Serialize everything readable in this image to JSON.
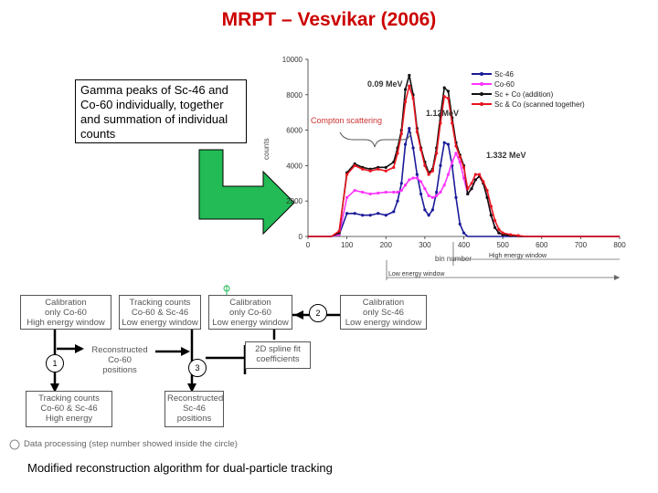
{
  "slide": {
    "title": "MRPT – Vesvikar (2006)",
    "callout": "Gamma peaks of Sc-46 and Co-60 individually, together and summation of individual counts",
    "caption": "Modified reconstruction algorithm for dual-particle tracking"
  },
  "colors": {
    "title": "#cc0000",
    "arrow_green": "#22bb55",
    "sc46": "#1a1a99",
    "co60": "#ff33ff",
    "addition": "#111111",
    "scanned": "#e8141e",
    "compton": "#cc3333"
  },
  "chart_data": {
    "type": "line",
    "ylabel": "counts",
    "xlabel": "bin number",
    "xlim": [
      0,
      800
    ],
    "ylim": [
      0,
      10000
    ],
    "xticks": [
      0,
      100,
      200,
      300,
      400,
      500,
      600,
      700,
      800
    ],
    "yticks": [
      0,
      2000,
      4000,
      6000,
      8000,
      10000
    ],
    "grid": false,
    "legend_position": "top-right",
    "x": [
      0,
      40,
      60,
      80,
      100,
      120,
      140,
      160,
      180,
      200,
      220,
      230,
      240,
      250,
      260,
      270,
      280,
      290,
      300,
      310,
      320,
      330,
      340,
      350,
      360,
      370,
      380,
      390,
      400,
      410,
      420,
      430,
      440,
      450,
      460,
      470,
      480,
      490,
      500,
      520,
      540,
      560,
      600,
      700,
      800
    ],
    "series": [
      {
        "name": "Sc-46",
        "values": [
          0,
          0,
          0,
          100,
          1300,
          1300,
          1200,
          1200,
          1300,
          1200,
          1400,
          2000,
          3000,
          5200,
          6100,
          5000,
          3500,
          2400,
          1500,
          1200,
          1500,
          2500,
          4000,
          5300,
          5200,
          4000,
          2200,
          700,
          200,
          0,
          0,
          0,
          0,
          0,
          0,
          0,
          0,
          0,
          0,
          0,
          0,
          0,
          0,
          0,
          0
        ]
      },
      {
        "name": "Co-60",
        "values": [
          0,
          0,
          0,
          100,
          2200,
          2600,
          2500,
          2400,
          2450,
          2500,
          2500,
          2500,
          2600,
          2900,
          3200,
          3300,
          3300,
          3100,
          2700,
          2300,
          2200,
          2300,
          2500,
          2900,
          3500,
          4200,
          4700,
          4200,
          3300,
          2400,
          2700,
          3200,
          3400,
          3000,
          2200,
          1200,
          500,
          200,
          100,
          50,
          0,
          0,
          0,
          0,
          0
        ]
      },
      {
        "name": "Sc + Co (addition)",
        "values": [
          0,
          0,
          0,
          200,
          3600,
          4100,
          3900,
          3800,
          3900,
          3900,
          4200,
          5000,
          6000,
          8300,
          9100,
          8000,
          6100,
          5000,
          4200,
          3600,
          3800,
          5000,
          6800,
          8400,
          8200,
          6700,
          5300,
          4600,
          4000,
          2400,
          2700,
          3200,
          3400,
          3000,
          2200,
          1200,
          500,
          200,
          100,
          50,
          0,
          0,
          0,
          0,
          0
        ]
      },
      {
        "name": "Sc & Co (scanned together)",
        "values": [
          0,
          0,
          0,
          300,
          3500,
          4000,
          3800,
          3700,
          3800,
          3700,
          3900,
          4700,
          5800,
          7600,
          8500,
          7800,
          5900,
          4900,
          4000,
          3500,
          3700,
          4700,
          6400,
          7900,
          7800,
          6400,
          5100,
          4500,
          3900,
          2700,
          3000,
          3500,
          3500,
          3100,
          2600,
          1700,
          900,
          400,
          200,
          100,
          50,
          0,
          0,
          0,
          0
        ]
      }
    ],
    "annotations": [
      "0.09 MeV",
      "1.12MeV",
      "1.332 MeV",
      "Compton scattering"
    ],
    "windows": [
      "High energy window",
      "Low energy window"
    ]
  },
  "flowchart": {
    "boxes": {
      "b1": "Calibration\nonly Co-60\nHigh energy window",
      "b2": "Tracking counts\nCo-60 & Sc-46\nLow energy window",
      "b3": "Calibration\nonly Co-60\nLow energy window",
      "b4": "Calibration\nonly Sc-46\nLow energy window",
      "b5": "Reconstructed\nCo-60\npositions",
      "b6": "2D spline fit\ncoefficients",
      "b7": "Tracking counts\nCo-60 & Sc-46\nHigh energy",
      "b8": "Reconstructed\nSc-46\npositions"
    },
    "steps": {
      "s1": "1",
      "s2": "2",
      "s3": "3"
    },
    "legend": "Data processing (step number showed inside the circle)"
  }
}
